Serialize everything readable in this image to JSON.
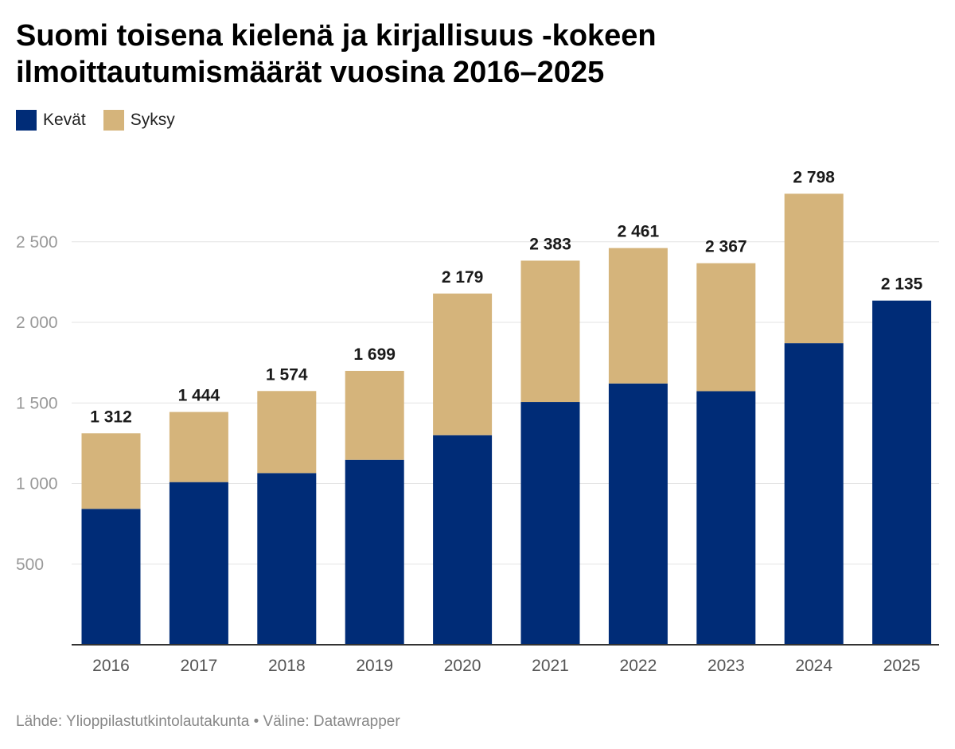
{
  "chart_data": {
    "type": "bar",
    "stacked": true,
    "title": "Suomi toisena kielenä ja kirjallisuus -kokeen ilmoittautumismäärät vuosina 2016–2025",
    "categories": [
      "2016",
      "2017",
      "2018",
      "2019",
      "2020",
      "2021",
      "2022",
      "2023",
      "2024",
      "2025"
    ],
    "series": [
      {
        "name": "Kevät",
        "color": "#002c77",
        "values": [
          843,
          1009,
          1065,
          1147,
          1300,
          1506,
          1621,
          1573,
          1871,
          2135
        ]
      },
      {
        "name": "Syksy",
        "color": "#d5b47b",
        "values": [
          469,
          435,
          509,
          552,
          879,
          877,
          840,
          794,
          927,
          0
        ]
      }
    ],
    "totals": [
      "1 312",
      "1 444",
      "1 574",
      "1 699",
      "2 179",
      "2 383",
      "2 461",
      "2 367",
      "2 798",
      "2 135"
    ],
    "totals_values": [
      1312,
      1444,
      1574,
      1699,
      2179,
      2383,
      2461,
      2367,
      2798,
      2135
    ],
    "yticks": [
      500,
      1000,
      1500,
      2000,
      2500
    ],
    "ytick_labels": [
      "500",
      "1 000",
      "1 500",
      "2 000",
      "2 500"
    ],
    "ylim": [
      0,
      2800
    ],
    "grid": true,
    "legend_position": "top-left",
    "xlabel": "",
    "ylabel": ""
  },
  "source": "Lähde: Ylioppilastutkintolautakunta • Väline: Datawrapper"
}
